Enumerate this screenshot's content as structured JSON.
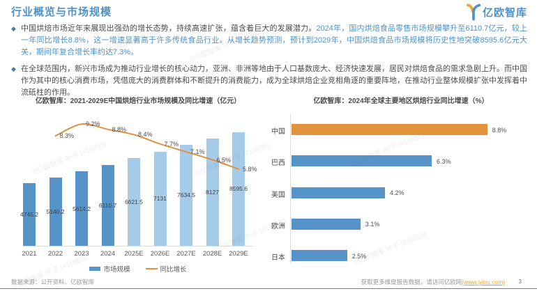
{
  "header": {
    "title": "行业概览与市场规模",
    "logo_text": "亿欧智库"
  },
  "bullets": [
    {
      "plain": "中国烘焙市场近年来展现出强劲的增长态势，持续高速扩张，蕴含着巨大的发展潜力。",
      "highlight": "2024年，国内烘焙食品零售市场规模攀升至6110.7亿元，较上一年同比增长8.8%，这一增速显著高于许多传统食品行业。从增长趋势预测，预计到2029年，中国烘焙食品市场规模将历史性地突破8595.6亿元大关，期间年复合增长率约达7.3%。"
    },
    {
      "plain": "在全球范围内，新兴市场成为推动行业增长的核心动力，亚洲、非洲等地由于人口基数庞大、经济快速发展，居民对烘焙食品的需求急剧上升。而中国作为其中的核心消费市场，凭借庞大的消费群体和不断提升的消费能力，成为全球烘焙企业竞相角逐的重要阵地，在推动行业整体规模扩张中发挥着中流砥柱的作用。",
      "highlight": ""
    }
  ],
  "chart_data": [
    {
      "id": "china-baking-market",
      "type": "combo bar+line",
      "title": "亿欧智库：2021-2029E中国烘焙行业市场规模及同比增速（亿元）",
      "categories": [
        "2021",
        "2022",
        "2023",
        "2024",
        "2025E",
        "2026E",
        "2027E",
        "2028E",
        "2029E"
      ],
      "series": [
        {
          "name": "市场规模",
          "type": "bar",
          "values": [
            4745.2,
            5140.2,
            5614.2,
            6110.7,
            6621.5,
            7131,
            7634.5,
            8127,
            8595.6
          ],
          "value_labels": [
            "4745.2",
            "5140.2",
            "5614.2",
            "6110.7",
            "6621.5",
            "7131",
            "7634.5",
            "8127",
            "8595.6"
          ],
          "bar_colors": [
            "#5593C8",
            "#5593C8",
            "#5593C8",
            "#5593C8",
            "#A6CBE8",
            "#A6CBE8",
            "#A6CBE8",
            "#A6CBE8",
            "#A6CBE8"
          ]
        },
        {
          "name": "同比增长",
          "type": "line",
          "color": "#E0913F",
          "values": [
            null,
            8.3,
            9.2,
            8.8,
            8.4,
            7.7,
            7.1,
            6.5,
            5.8
          ],
          "point_labels": [
            "",
            "8.3%",
            "9.2%",
            "8.8%",
            "8.4%",
            "7.7%",
            "7.1%",
            "6.5%",
            "5.8%"
          ]
        }
      ],
      "ylim": [
        0,
        10000
      ],
      "y2lim": [
        0,
        10
      ],
      "grid": false,
      "legend": [
        "市场规模",
        "同比增长"
      ],
      "legend_position": "bottom"
    },
    {
      "id": "regions-growth-2024",
      "type": "bar",
      "orientation": "horizontal",
      "title": "亿欧智库：2024年全球主要地区烘焙行业同比增速（%）",
      "categories": [
        "中国",
        "巴西",
        "美国",
        "欧洲",
        "日本"
      ],
      "values": [
        8.8,
        6.3,
        4.2,
        3.1,
        2.5
      ],
      "value_labels": [
        "8.8%",
        "6.3%",
        "4.2%",
        "3.1%",
        "2.5%"
      ],
      "bar_colors": [
        "#E2943C",
        "#5593C8",
        "#5593C8",
        "#5593C8",
        "#5593C8"
      ],
      "xlim": [
        0,
        10
      ],
      "grid": false
    }
  ],
  "footer": {
    "source": "数据来源：公开资料、亿欧智库",
    "promo_prefix": "获取更多维度报告数据，请访问亿欧网",
    "promo_link": "(www.iyiou.com)",
    "page_number": "3"
  },
  "watermark": {
    "text": "©亿欧智库-叶子 (416955)"
  },
  "colors": {
    "accent_blue": "#4E93C8",
    "bar_blue": "#5593C8",
    "bar_blue_light": "#A6CBE8",
    "line_orange": "#E0913F",
    "bar_orange": "#E2943C",
    "link_orange": "#E8A33D",
    "text_dark": "#4d4d4d"
  }
}
